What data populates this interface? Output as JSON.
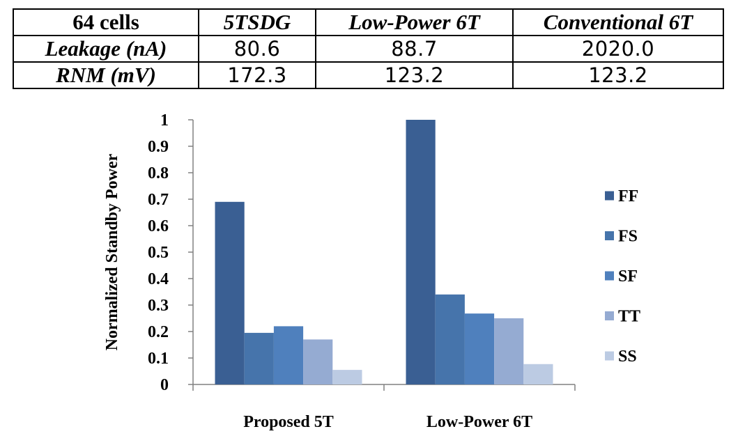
{
  "table": {
    "header": [
      "64 cells",
      "5TSDG",
      "Low-Power 6T",
      "Conventional 6T"
    ],
    "rows": [
      {
        "label": "Leakage (nA)",
        "values": [
          "80.6",
          "88.7",
          "2020.0"
        ]
      },
      {
        "label": "RNM (mV)",
        "values": [
          "172.3",
          "123.2",
          "123.2"
        ]
      }
    ]
  },
  "chart_data": {
    "type": "bar",
    "categories": [
      "Proposed 5T",
      "Low-Power 6T"
    ],
    "series": [
      {
        "name": "FF",
        "values": [
          0.69,
          1.0
        ],
        "color": "#3a5f93"
      },
      {
        "name": "FS",
        "values": [
          0.195,
          0.34
        ],
        "color": "#4674ab"
      },
      {
        "name": "SF",
        "values": [
          0.22,
          0.268
        ],
        "color": "#4f80bd"
      },
      {
        "name": "TT",
        "values": [
          0.17,
          0.25
        ],
        "color": "#95abd2"
      },
      {
        "name": "SS",
        "values": [
          0.055,
          0.077
        ],
        "color": "#bccbe3"
      }
    ],
    "ylabel": "Normalized Standby Power",
    "ylim": [
      0,
      1
    ],
    "yticks": [
      "0",
      "0.1",
      "0.2",
      "0.3",
      "0.4",
      "0.5",
      "0.6",
      "0.7",
      "0.8",
      "0.9",
      "1"
    ],
    "grid": false,
    "legend": "right"
  }
}
